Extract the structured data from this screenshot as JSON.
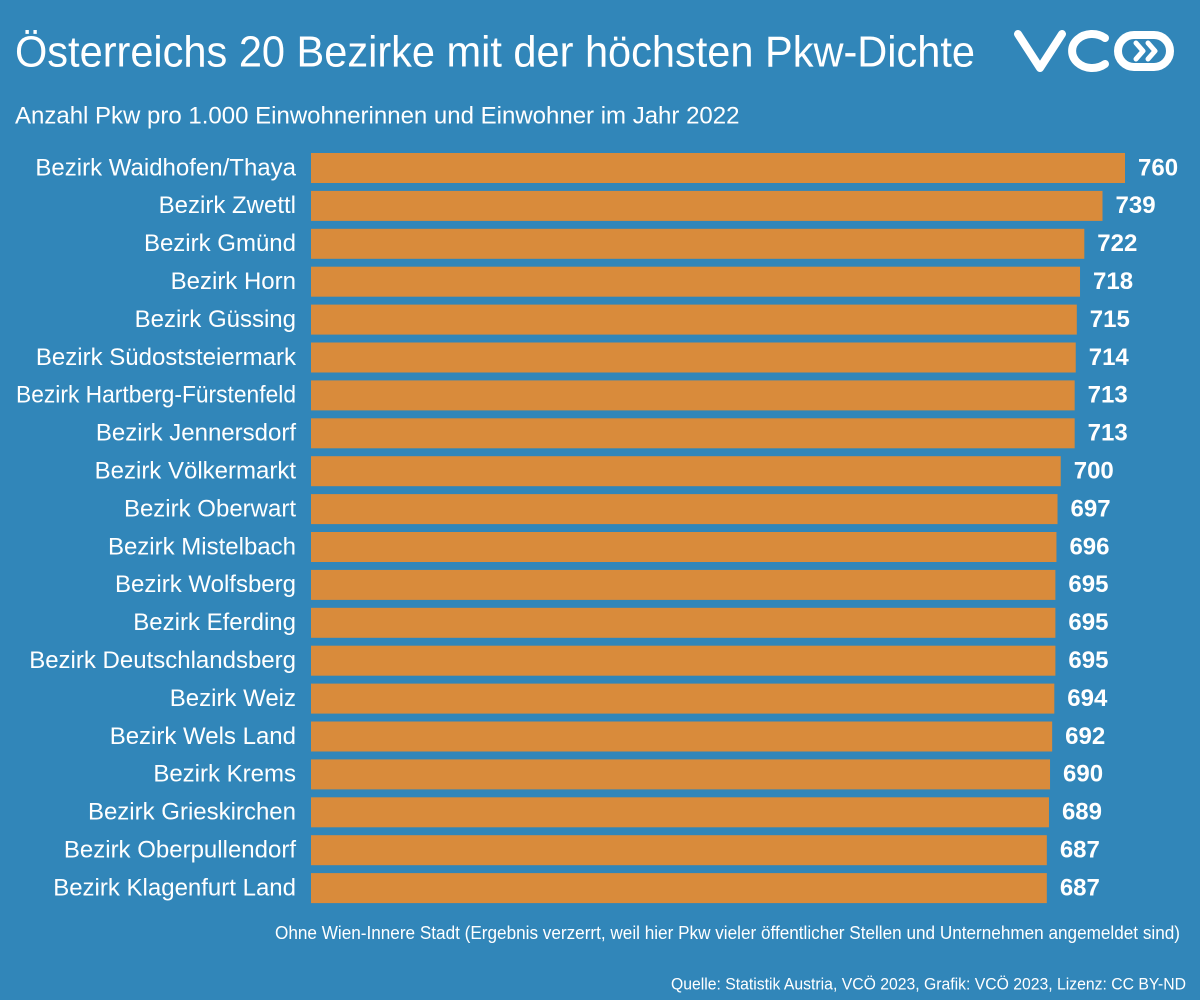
{
  "chart_data": {
    "type": "bar",
    "orientation": "horizontal",
    "title": "Österreichs 20 Bezirke mit der höchsten Pkw-Dichte",
    "subtitle": "Anzahl Pkw pro 1.000 Einwohnerinnen und Einwohner im Jahr 2022",
    "categories": [
      "Bezirk Waidhofen/Thaya",
      "Bezirk Zwettl",
      "Bezirk Gmünd",
      "Bezirk Horn",
      "Bezirk Güssing",
      "Bezirk Südoststeiermark",
      "Bezirk Hartberg-Fürstenfeld",
      "Bezirk Jennersdorf",
      "Bezirk Völkermarkt",
      "Bezirk Oberwart",
      "Bezirk Mistelbach",
      "Bezirk Wolfsberg",
      "Bezirk Eferding",
      "Bezirk Deutschlandsberg",
      "Bezirk Weiz",
      "Bezirk Wels Land",
      "Bezirk Krems",
      "Bezirk Grieskirchen",
      "Bezirk Oberpullendorf",
      "Bezirk Klagenfurt Land"
    ],
    "values": [
      760,
      739,
      722,
      718,
      715,
      714,
      713,
      713,
      700,
      697,
      696,
      695,
      695,
      695,
      694,
      692,
      690,
      689,
      687,
      687
    ],
    "color": "#d98b3b",
    "footnote": "Ohne Wien-Innere Stadt (Ergebnis verzerrt, weil hier Pkw vieler öffentlicher Stellen und Unternehmen angemeldet sind)",
    "source": "Quelle: Statistik Austria, VCÖ 2023, Grafik: VCÖ 2023, Lizenz: CC BY-ND"
  }
}
